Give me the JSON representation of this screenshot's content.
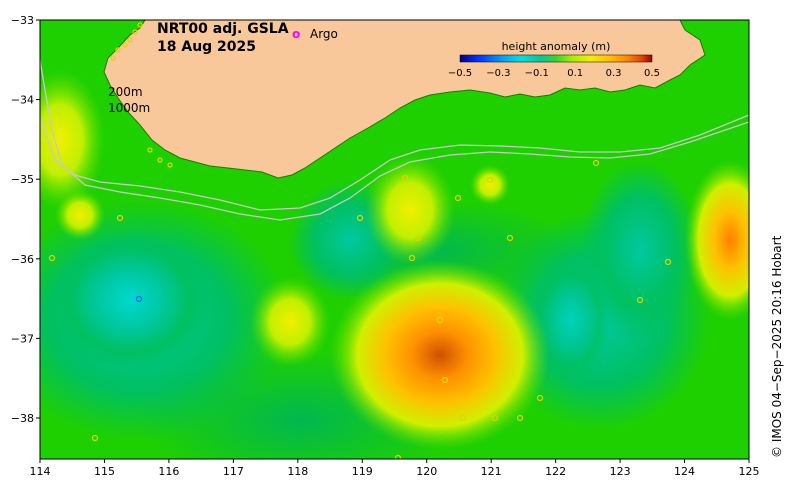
{
  "title": {
    "line1": "NRT00 adj. GSLA",
    "line2": "18 Aug 2025"
  },
  "legend": {
    "argo_label": "Argo",
    "argo_marker": "o",
    "argo_color": "#ff00ff"
  },
  "isobaths": [
    "200m",
    "1000m"
  ],
  "colorbar": {
    "title": "height anomaly (m)",
    "ticks": [
      "−0.5",
      "−0.3",
      "−0.1",
      "0.1",
      "0.3",
      "0.5"
    ],
    "colors": [
      "#00008f",
      "#0030ff",
      "#00a0ff",
      "#00e0e0",
      "#00c8a0",
      "#30d830",
      "#a0f000",
      "#f0f000",
      "#ffc000",
      "#ff8000",
      "#e04000",
      "#a00000"
    ]
  },
  "axes": {
    "x_ticks": [
      "114",
      "115",
      "116",
      "117",
      "118",
      "119",
      "120",
      "121",
      "122",
      "123",
      "124",
      "125"
    ],
    "y_ticks": [
      "−33",
      "−34",
      "−35",
      "−36",
      "−37",
      "−38"
    ]
  },
  "credit": "© IMOS 04−Sep−2025 20:16 Hobart",
  "colors": {
    "land": "#f9c89a",
    "ocean_base": "#1fd000",
    "low_anomaly": "#00c880",
    "high_anomaly": "#ffa000"
  }
}
